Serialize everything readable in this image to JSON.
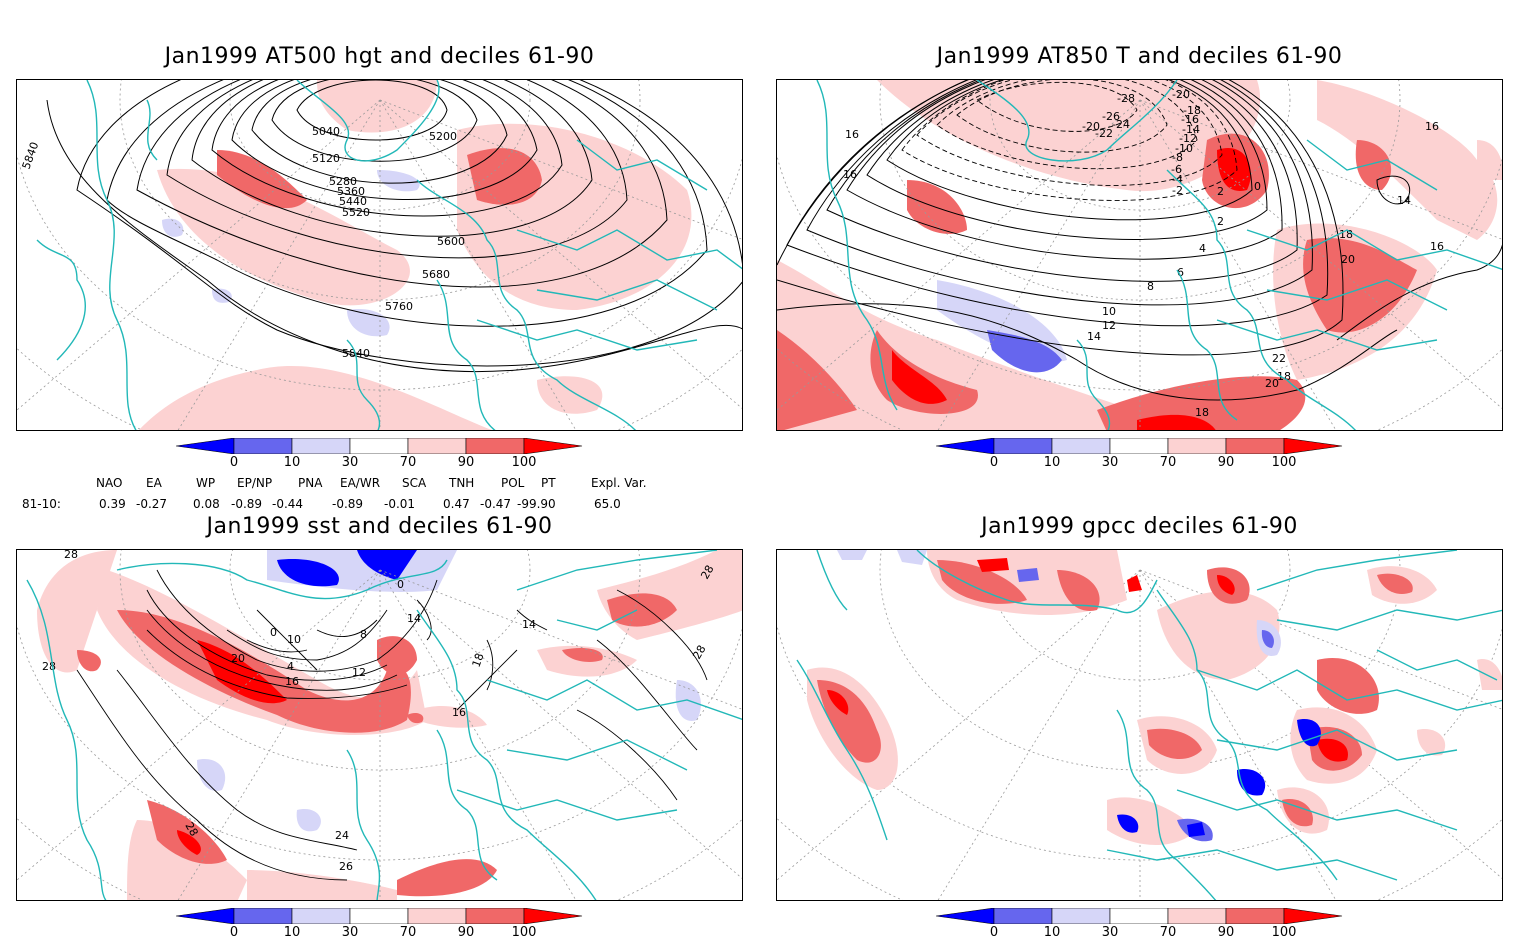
{
  "panels": {
    "p1": {
      "title": "Jan1999 AT500 hgt and deciles 61-90",
      "contour_labels": [
        "5040",
        "5120",
        "5200",
        "5280",
        "5360",
        "5440",
        "5520",
        "5600",
        "5680",
        "5760",
        "5840",
        "5840"
      ]
    },
    "p2": {
      "title": "Jan1999 AT850 T and deciles 61-90",
      "contour_labels": [
        "-28",
        "-26",
        "-24",
        "-22",
        "-20",
        "-20",
        "-18",
        "-16",
        "-14",
        "-12",
        "-10",
        "-8",
        "-6",
        "-4",
        "-2",
        "0",
        "2",
        "2",
        "4",
        "6",
        "8",
        "10",
        "12",
        "14",
        "14",
        "16",
        "16",
        "16",
        "16",
        "18",
        "18",
        "18",
        "20",
        "20",
        "22"
      ]
    },
    "p3": {
      "title": "Jan1999 sst and deciles 61-90",
      "contour_labels": [
        "28",
        "28",
        "28",
        "28",
        "28",
        "26",
        "20",
        "0",
        "10",
        "4",
        "8",
        "12",
        "16",
        "24",
        "14",
        "16",
        "18",
        "0",
        "14"
      ]
    },
    "p4": {
      "title": "Jan1999 gpcc deciles 61-90"
    }
  },
  "colorbar": {
    "ticks": [
      "0",
      "10",
      "30",
      "70",
      "90",
      "100"
    ],
    "colors": {
      "dark_blue": "#0000ff",
      "mid_blue": "#6666ee",
      "light_blue": "#d6d6f8",
      "white": "#ffffff",
      "light_red": "#fcd2d2",
      "mid_red": "#f06868",
      "dark_red": "#ff0000"
    }
  },
  "indices": {
    "headers": [
      "NAO",
      "EA",
      "WP",
      "EP/NP",
      "PNA",
      "EA/WR",
      "SCA",
      "TNH",
      "POL",
      "PT",
      "Expl. Var."
    ],
    "row_label": "81-10:",
    "values": [
      "0.39",
      "-0.27",
      "0.08",
      "-0.89",
      "-0.44",
      "-0.89",
      "-0.01",
      "0.47",
      "-0.47",
      "-99.90",
      "65.0"
    ]
  },
  "map_colors": {
    "coast": "#22b8b8",
    "grid": "#999999",
    "contour": "#000000"
  }
}
